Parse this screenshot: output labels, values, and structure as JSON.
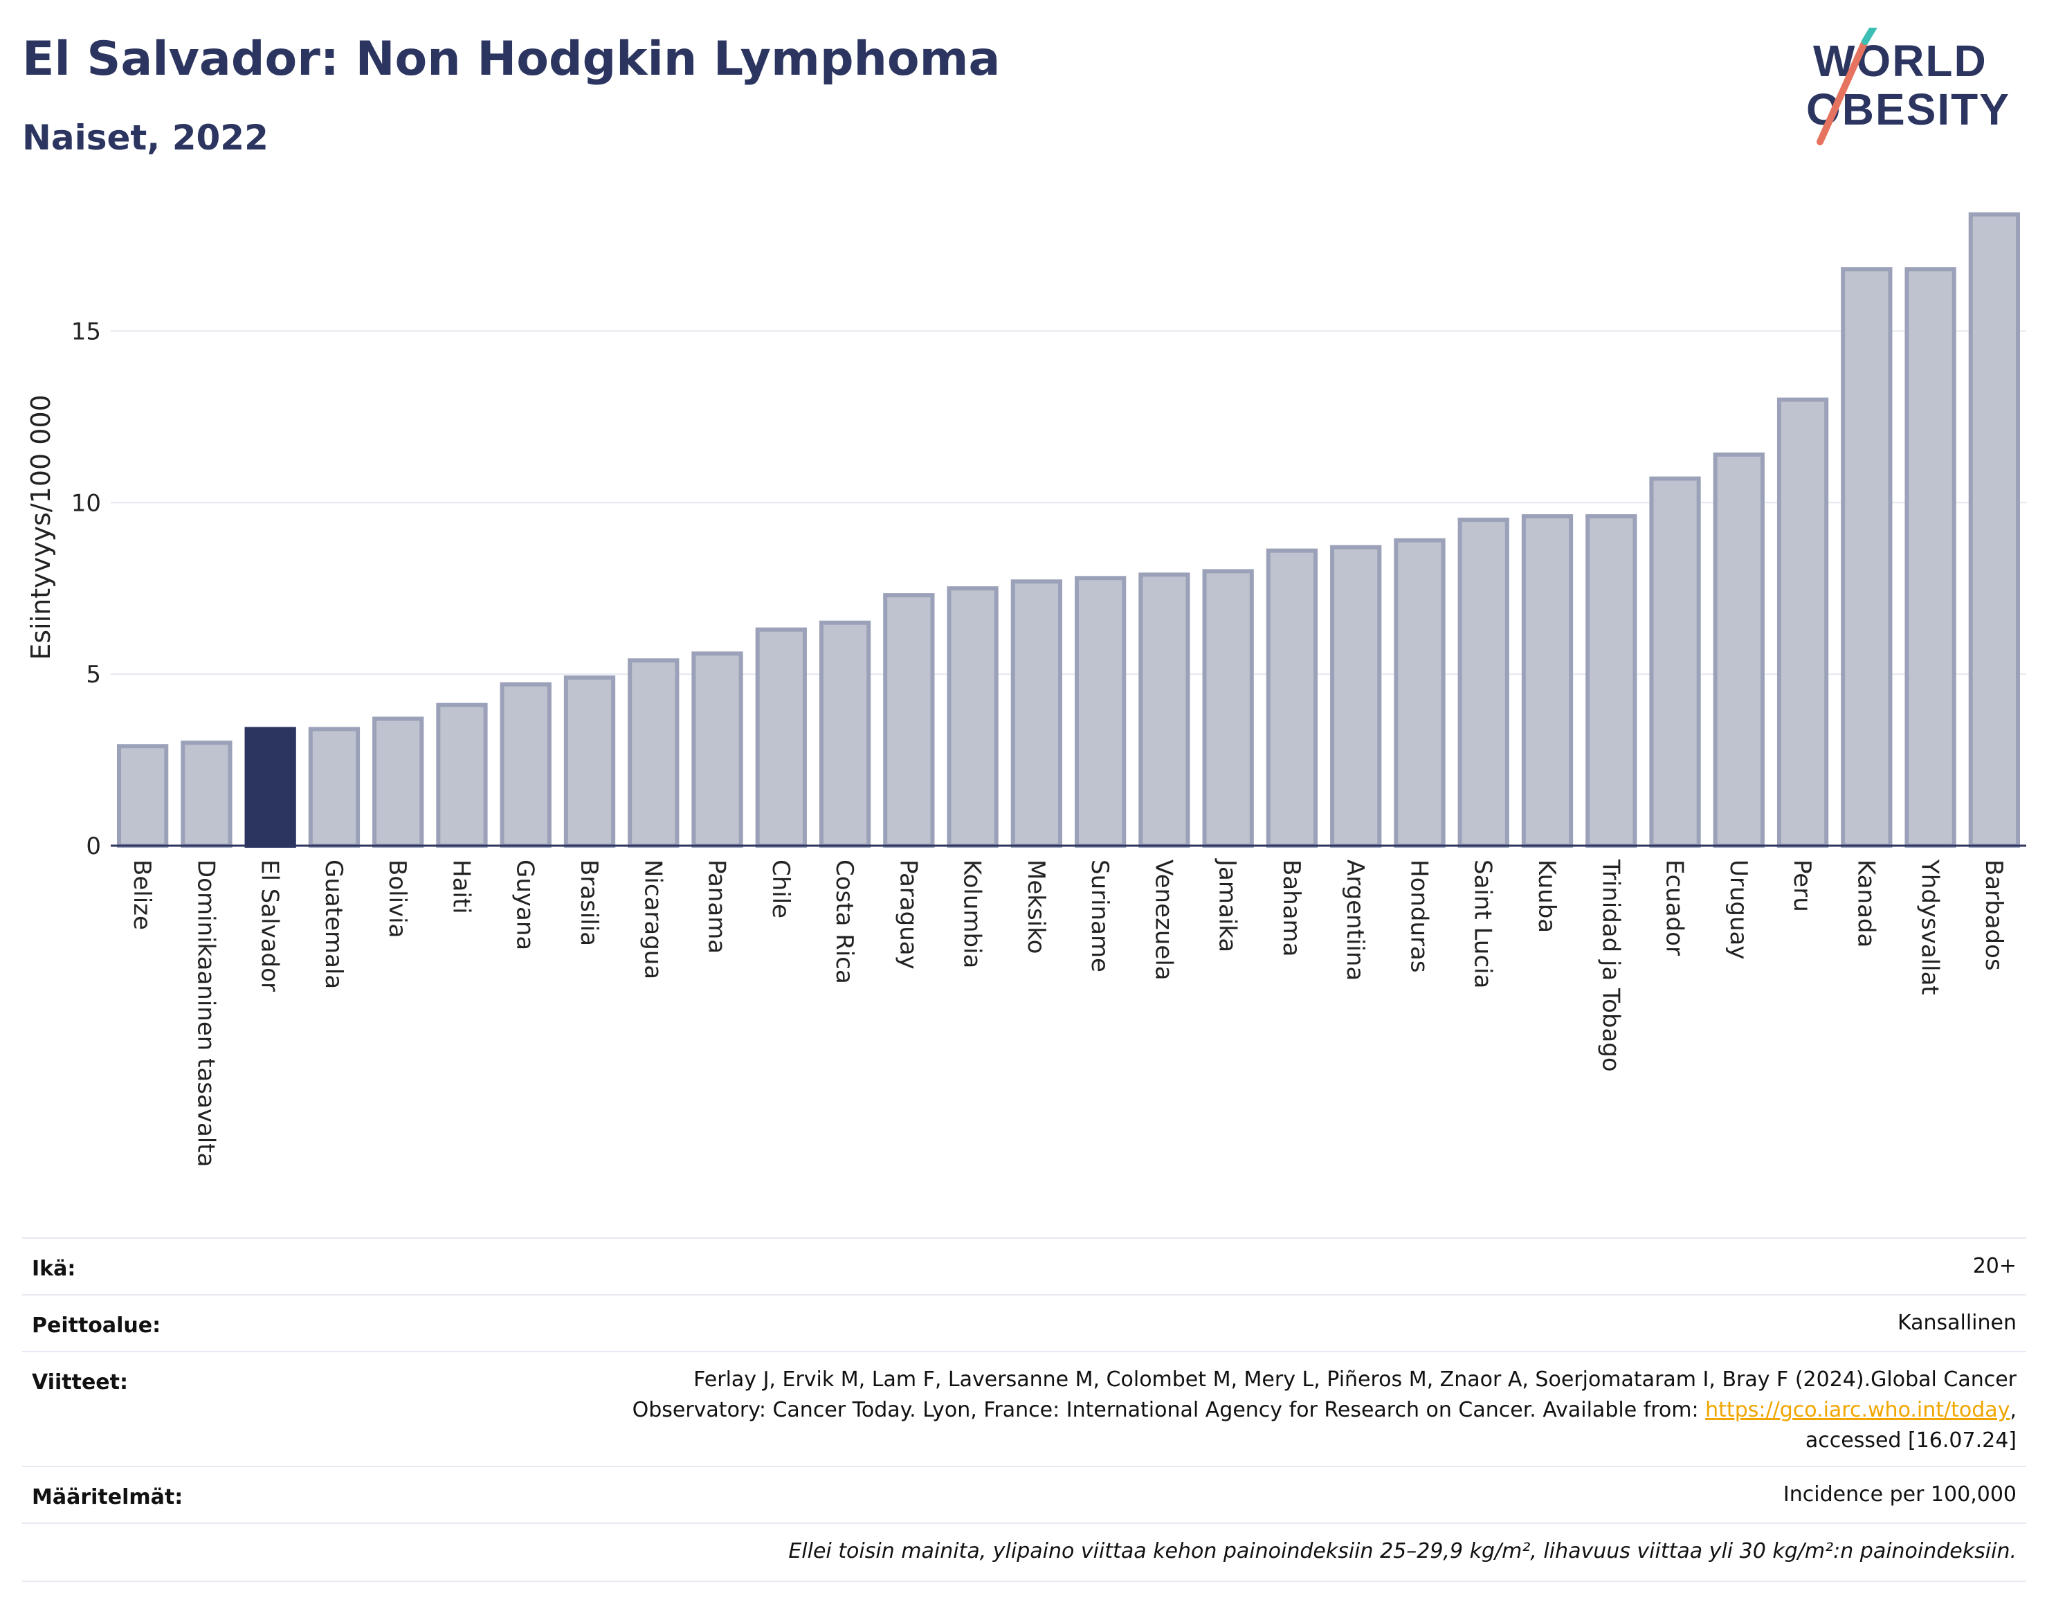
{
  "header": {
    "title": "El Salvador: Non Hodgkin Lymphoma",
    "subtitle": "Naiset, 2022",
    "logo_line1": "WORLD",
    "logo_line2": "OBESITY"
  },
  "chart_data": {
    "type": "bar",
    "ylabel": "Esiintyvyys/100 000",
    "xlabel": "",
    "ylim": [
      0,
      18.8
    ],
    "yticks": [
      0,
      5,
      10,
      15
    ],
    "grid": true,
    "highlight": "El Salvador",
    "colors": {
      "bar": "#bfc3d0",
      "bar_border": "#9ba1b8",
      "highlight": "#2b3560",
      "grid": "#e6e8f0"
    },
    "categories": [
      "Belize",
      "Dominikaaninen tasavalta",
      "El Salvador",
      "Guatemala",
      "Bolivia",
      "Haiti",
      "Guyana",
      "Brasilia",
      "Nicaragua",
      "Panama",
      "Chile",
      "Costa Rica",
      "Paraguay",
      "Kolumbia",
      "Meksiko",
      "Suriname",
      "Venezuela",
      "Jamaika",
      "Bahama",
      "Argentiina",
      "Honduras",
      "Saint Lucia",
      "Kuuba",
      "Trinidad ja Tobago",
      "Ecuador",
      "Uruguay",
      "Peru",
      "Kanada",
      "Yhdysvallat",
      "Barbados"
    ],
    "values": [
      2.9,
      3.0,
      3.4,
      3.4,
      3.7,
      4.1,
      4.7,
      4.9,
      5.4,
      5.6,
      6.3,
      6.5,
      7.3,
      7.5,
      7.7,
      7.8,
      7.9,
      8.0,
      8.6,
      8.7,
      8.9,
      9.5,
      9.6,
      9.6,
      10.7,
      11.4,
      13.0,
      16.8,
      16.8,
      18.4
    ]
  },
  "info": [
    {
      "label": "Ikä:",
      "value": "20+"
    },
    {
      "label": "Peittoalue:",
      "value": "Kansallinen"
    },
    {
      "label": "Viitteet:",
      "value_line1": "Ferlay J, Ervik M, Lam F, Laversanne M, Colombet M, Mery L, Piñeros M, Znaor A, Soerjomataram I, Bray F (2024).Global Cancer",
      "value_line2": "Observatory: Cancer Today. Lyon, France: International Agency for Research on Cancer. Available from: ",
      "link": "https://gco.iarc.who.int/today",
      "value_line2_end": ",",
      "value_line3": "accessed [16.07.24]"
    },
    {
      "label": "Määritelmät:",
      "value": "Incidence per 100,000"
    },
    {
      "label": "",
      "value": "Ellei toisin mainita, ylipaino viittaa kehon painoindeksiin 25–29,9 kg/m², lihavuus viittaa yli 30 kg/m²:n painoindeksiin."
    }
  ]
}
